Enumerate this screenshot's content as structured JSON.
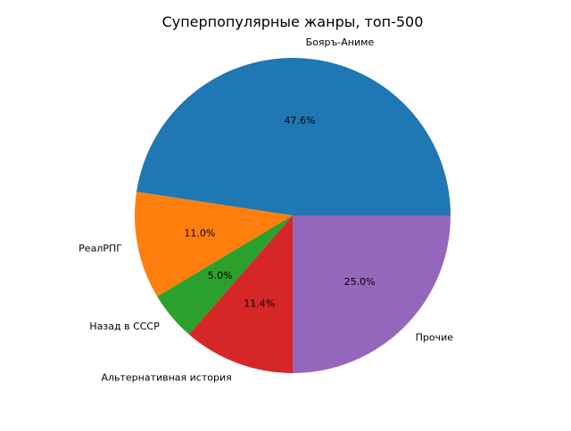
{
  "chart_data": {
    "type": "pie",
    "title": "Суперпопулярные жанры, топ-500",
    "start_angle_deg": 0,
    "direction": "counterclockwise",
    "slices": [
      {
        "label": "Бояръ-Аниме",
        "value": 47.6,
        "pct_label": "47.6%",
        "color": "#1f77b4"
      },
      {
        "label": "РеалРПГ",
        "value": 11.0,
        "pct_label": "11.0%",
        "color": "#ff7f0e"
      },
      {
        "label": "Назад в СССР",
        "value": 5.0,
        "pct_label": "5.0%",
        "color": "#2ca02c"
      },
      {
        "label": "Альтернативная история",
        "value": 11.4,
        "pct_label": "11.4%",
        "color": "#d62728"
      },
      {
        "label": "Прочие",
        "value": 25.0,
        "pct_label": "25.0%",
        "color": "#9467bd"
      }
    ]
  }
}
